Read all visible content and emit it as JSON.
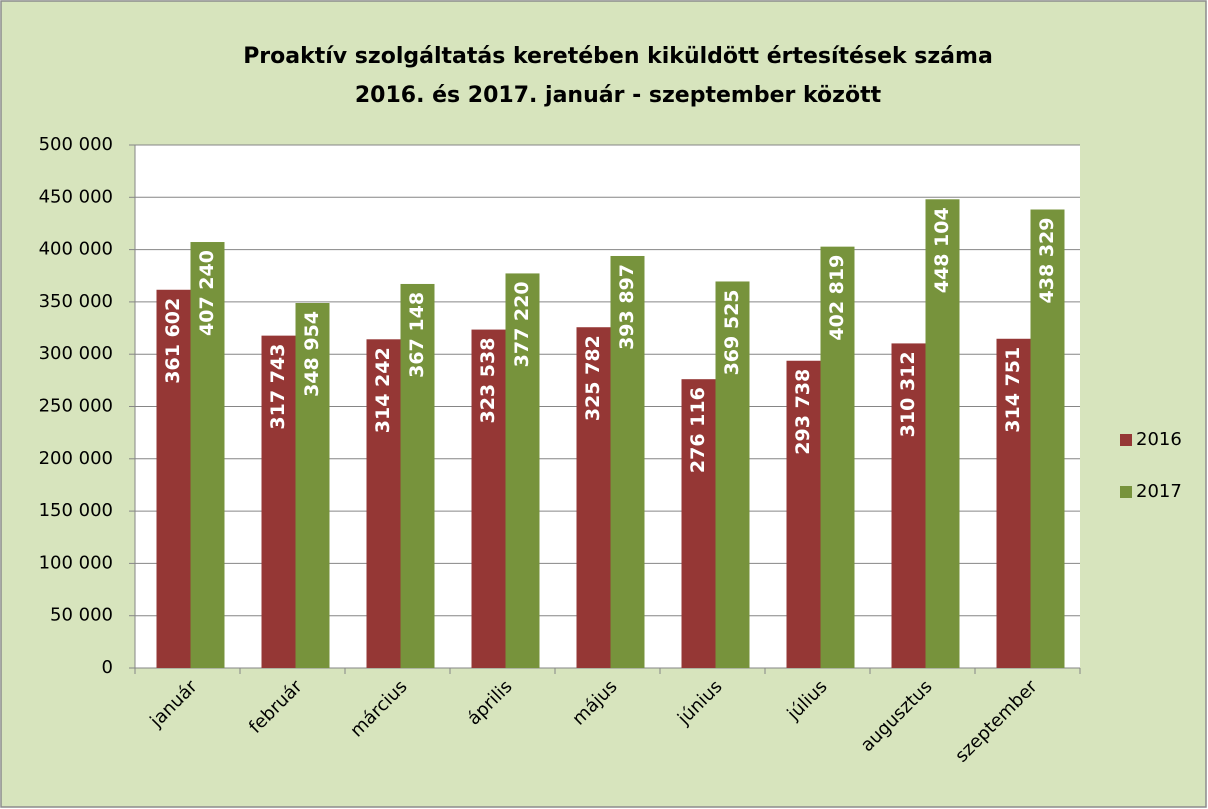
{
  "chart_data": {
    "type": "bar",
    "title": [
      "Proaktív szolgáltatás keretében kiküldött értesítések száma",
      "2016. és 2017. január - szeptember között"
    ],
    "categories": [
      "január",
      "február",
      "március",
      "április",
      "május",
      "június",
      "július",
      "augusztus",
      "szeptember"
    ],
    "series": [
      {
        "name": "2016",
        "color": "#953735",
        "values": [
          361602,
          317743,
          314242,
          323538,
          325782,
          276116,
          293738,
          310312,
          314751
        ],
        "value_labels": [
          "361 602",
          "317 743",
          "314 242",
          "323 538",
          "325 782",
          "276 116",
          "293 738",
          "310 312",
          "314 751"
        ]
      },
      {
        "name": "2017",
        "color": "#77933c",
        "values": [
          407240,
          348954,
          367148,
          377220,
          393897,
          369525,
          402819,
          448104,
          438329
        ],
        "value_labels": [
          "407 240",
          "348 954",
          "367 148",
          "377 220",
          "393 897",
          "369 525",
          "402 819",
          "448 104",
          "438 329"
        ]
      }
    ],
    "ylim": [
      0,
      500000
    ],
    "yticks": [
      0,
      {
        "value": 50000,
        "label": "50 000"
      },
      {
        "value": 100000,
        "label": "100 000"
      },
      {
        "value": 150000,
        "label": "150 000"
      },
      {
        "value": 200000,
        "label": "200 000"
      },
      {
        "value": 250000,
        "label": "250 000"
      },
      {
        "value": 300000,
        "label": "300 000"
      },
      {
        "value": 350000,
        "label": "350 000"
      },
      {
        "value": 400000,
        "label": "400 000"
      },
      {
        "value": 450000,
        "label": "450 000"
      },
      {
        "value": 500000,
        "label": "500 000"
      }
    ],
    "grid": true,
    "legend": "right"
  }
}
